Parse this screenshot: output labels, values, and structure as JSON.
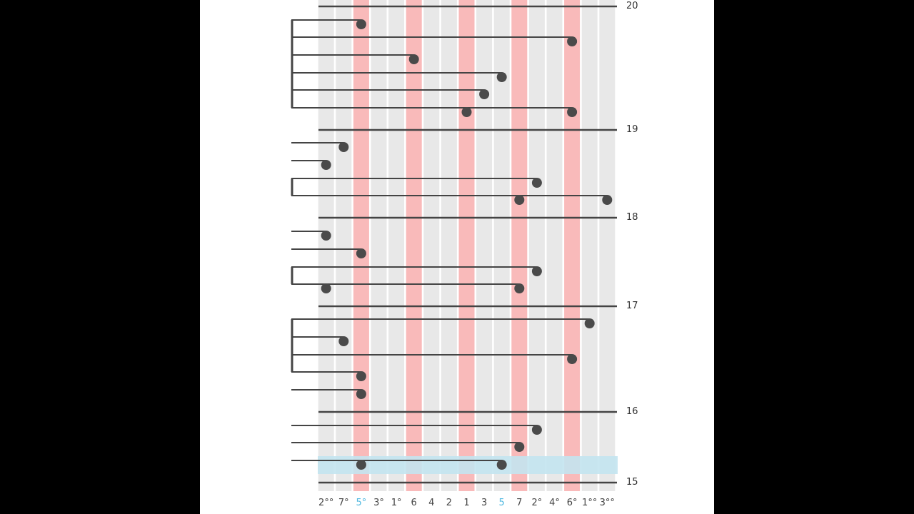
{
  "columns": [
    {
      "label": "2°°",
      "kind": "normal"
    },
    {
      "label": "7°",
      "kind": "normal"
    },
    {
      "label": "5°",
      "kind": "red",
      "selected": true
    },
    {
      "label": "3°",
      "kind": "normal"
    },
    {
      "label": "1°",
      "kind": "normal"
    },
    {
      "label": "6",
      "kind": "red"
    },
    {
      "label": "4",
      "kind": "normal"
    },
    {
      "label": "2",
      "kind": "normal"
    },
    {
      "label": "1",
      "kind": "red"
    },
    {
      "label": "3",
      "kind": "normal"
    },
    {
      "label": "5",
      "kind": "normal",
      "selected": true
    },
    {
      "label": "7",
      "kind": "red"
    },
    {
      "label": "2°",
      "kind": "normal"
    },
    {
      "label": "4°",
      "kind": "normal"
    },
    {
      "label": "6°",
      "kind": "red"
    },
    {
      "label": "1°°",
      "kind": "normal"
    },
    {
      "label": "3°°",
      "kind": "normal"
    }
  ],
  "measure_numbers": [
    "20",
    "19",
    "18",
    "17",
    "16",
    "15"
  ],
  "groups": [
    {
      "notes": [
        [
          2
        ],
        [
          14
        ],
        [
          5
        ],
        [
          10
        ],
        [
          9
        ],
        [
          8,
          14
        ]
      ]
    },
    {
      "notes": [
        [
          1
        ]
      ]
    },
    {
      "notes": [
        [
          0
        ]
      ]
    },
    {
      "notes": [
        [
          12
        ],
        [
          11,
          16
        ]
      ]
    },
    {
      "notes": [
        [
          0
        ]
      ]
    },
    {
      "notes": [
        [
          2
        ]
      ]
    },
    {
      "notes": [
        [
          12
        ],
        [
          0,
          11
        ]
      ]
    },
    {
      "notes": [
        [
          15
        ],
        [
          1
        ],
        [
          14
        ],
        [
          2
        ]
      ]
    },
    {
      "notes": [
        [
          2
        ]
      ]
    },
    {
      "notes": [
        [
          12
        ]
      ]
    },
    {
      "notes": [
        [
          11
        ]
      ]
    },
    {
      "notes": [
        [
          2,
          10
        ]
      ]
    }
  ],
  "colors": {
    "normal_column": "#e8e8e8",
    "red_column": "#f9baba",
    "highlight_row": "#c3e4ef",
    "note": "#4a4a4a",
    "line": "#444444",
    "selected_label": "#4fb8e0"
  }
}
